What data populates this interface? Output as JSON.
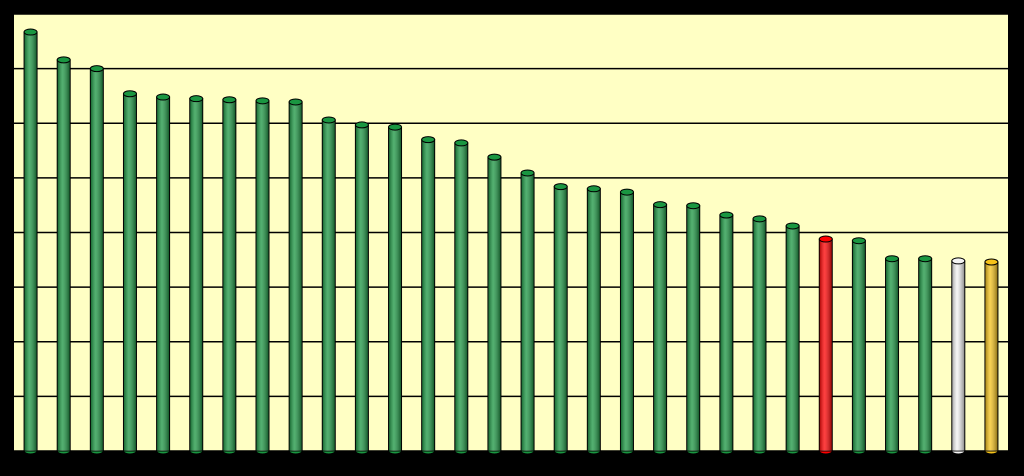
{
  "chart_data": {
    "type": "bar",
    "categories": [
      null,
      null,
      null,
      null,
      null,
      null,
      null,
      null,
      null,
      null,
      null,
      null,
      null,
      null,
      null,
      null,
      null,
      null,
      null,
      null,
      null,
      null,
      null,
      null,
      null,
      null,
      null,
      null,
      null,
      null
    ],
    "values": [
      7.67,
      7.16,
      7.0,
      6.54,
      6.48,
      6.45,
      6.43,
      6.41,
      6.39,
      6.06,
      5.97,
      5.93,
      5.7,
      5.64,
      5.38,
      5.09,
      4.84,
      4.8,
      4.74,
      4.51,
      4.49,
      4.32,
      4.25,
      4.12,
      3.88,
      3.85,
      3.52,
      3.52,
      3.48,
      3.46
    ],
    "colors": [
      "#1a9641",
      "#1a9641",
      "#1a9641",
      "#1a9641",
      "#1a9641",
      "#1a9641",
      "#1a9641",
      "#1a9641",
      "#1a9641",
      "#1a9641",
      "#1a9641",
      "#1a9641",
      "#1a9641",
      "#1a9641",
      "#1a9641",
      "#1a9641",
      "#1a9641",
      "#1a9641",
      "#1a9641",
      "#1a9641",
      "#1a9641",
      "#1a9641",
      "#1a9641",
      "#1a9641",
      "#ff0000",
      "#1a9641",
      "#1a9641",
      "#1a9641",
      "#f4f4f4",
      "#f5c21a"
    ],
    "ylim": [
      0,
      8
    ],
    "yticks": [
      0,
      1,
      2,
      3,
      4,
      5,
      6,
      7,
      8
    ],
    "grid": true
  }
}
